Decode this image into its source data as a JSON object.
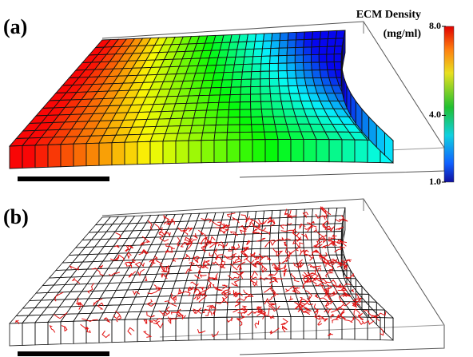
{
  "panels": [
    {
      "label": "(a)"
    },
    {
      "label": "(b)"
    }
  ],
  "colorbar": {
    "title": "ECM Density",
    "unit": "(mg/ml)",
    "lim": [
      1,
      8
    ],
    "ticks": [
      {
        "value": 1,
        "label": "1.0"
      },
      {
        "value": 4,
        "label": "4.0"
      },
      {
        "value": 8,
        "label": "8.0"
      }
    ]
  }
}
